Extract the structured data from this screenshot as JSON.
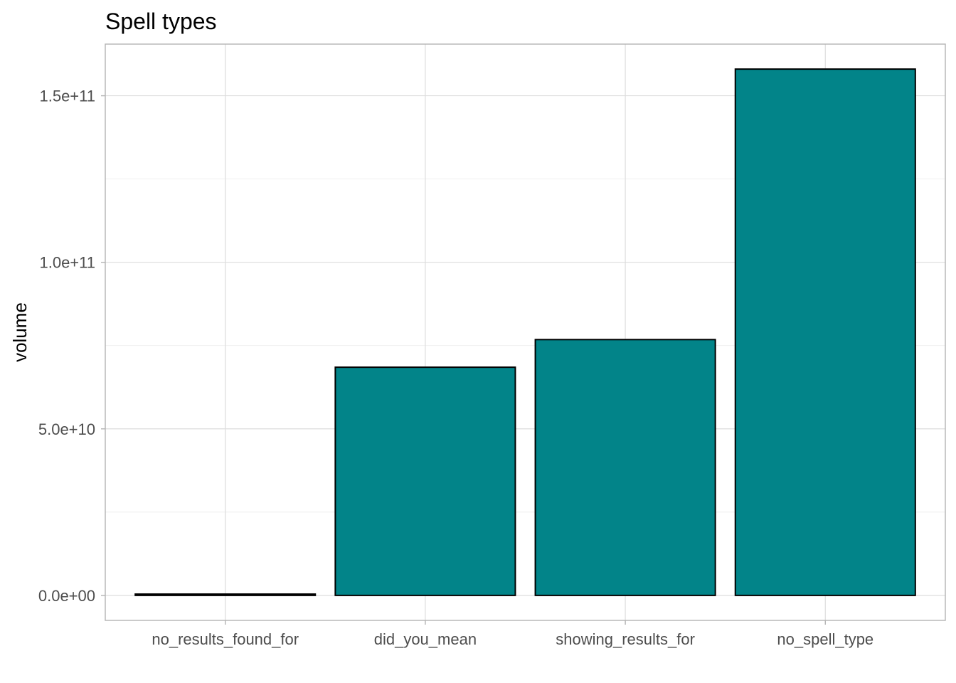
{
  "chart_data": {
    "type": "bar",
    "title": "Spell types",
    "xlabel": "",
    "ylabel": "volume",
    "categories": [
      "no_results_found_for",
      "did_you_mean",
      "showing_results_for",
      "no_spell_type"
    ],
    "values": [
      400000000,
      68500000000,
      76800000000,
      158000000000
    ],
    "ylim": [
      -7500000000,
      165500000000
    ],
    "y_ticks": [
      {
        "value": 0,
        "label": "0.0e+00"
      },
      {
        "value": 50000000000,
        "label": "5.0e+10"
      },
      {
        "value": 100000000000,
        "label": "1.0e+11"
      },
      {
        "value": 150000000000,
        "label": "1.5e+11"
      }
    ],
    "y_minor_ticks": [
      25000000000,
      75000000000,
      125000000000
    ],
    "bar_color": "#028489",
    "grid": true,
    "legend": "none"
  }
}
